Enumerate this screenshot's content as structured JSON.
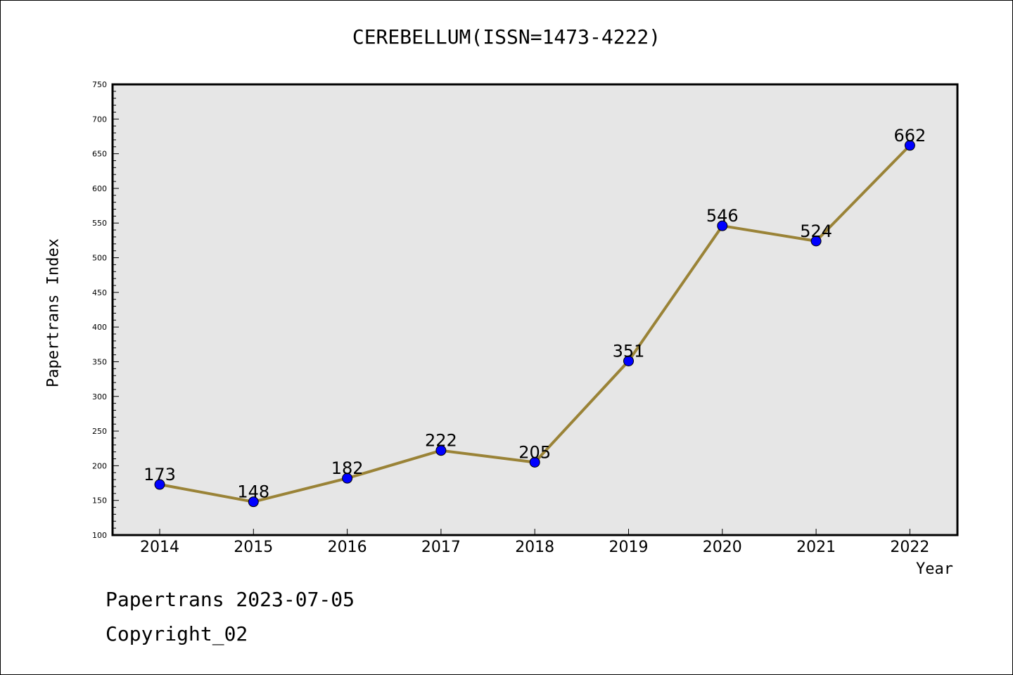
{
  "title": "CEREBELLUM(ISSN=1473-4222)",
  "footer": {
    "line1": "Papertrans 2023-07-05",
    "line2": "Copyright_02"
  },
  "colors": {
    "plot_bg": "#e6e6e6",
    "line": "#9a8337",
    "marker": "#0000ff"
  },
  "chart_data": {
    "type": "line",
    "title": "CEREBELLUM(ISSN=1473-4222)",
    "xlabel": "Year",
    "ylabel": "Papertrans Index",
    "categories": [
      "2014",
      "2015",
      "2016",
      "2017",
      "2018",
      "2019",
      "2020",
      "2021",
      "2022"
    ],
    "series": [
      {
        "values": [
          173,
          148,
          182,
          222,
          205,
          351,
          546,
          524,
          662
        ]
      }
    ],
    "ylim": [
      100,
      750
    ],
    "yticks": [
      100,
      150,
      200,
      250,
      300,
      350,
      400,
      450,
      500,
      550,
      600,
      650,
      700,
      750
    ],
    "grid": false,
    "data_labels": true
  }
}
